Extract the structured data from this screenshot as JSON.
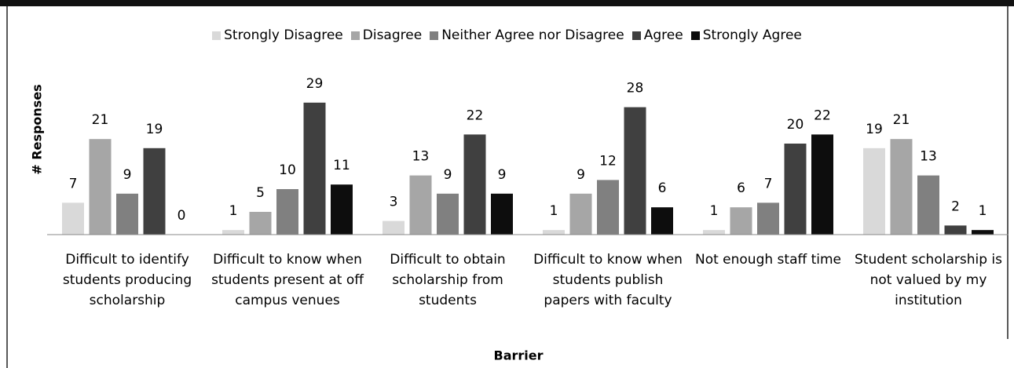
{
  "chart_data": {
    "type": "bar",
    "x_label": "Barrier",
    "y_label": "# Responses",
    "categories": [
      "Difficult to identify students producing scholarship",
      "Difficult to know when students present at off campus venues",
      "Difficult to obtain scholarship from students",
      "Difficult to know when students publish papers with faculty",
      "Not enough staff time",
      "Student scholarship is not valued by my institution"
    ],
    "series": [
      {
        "name": "Strongly Disagree",
        "color": "#d9d9d9",
        "values": [
          7,
          1,
          3,
          1,
          1,
          19
        ]
      },
      {
        "name": "Disagree",
        "color": "#a6a6a6",
        "values": [
          21,
          5,
          13,
          9,
          6,
          21
        ]
      },
      {
        "name": "Neither Agree nor Disagree",
        "color": "#808080",
        "values": [
          9,
          10,
          9,
          12,
          7,
          13
        ]
      },
      {
        "name": "Agree",
        "color": "#404040",
        "values": [
          19,
          29,
          22,
          28,
          20,
          2
        ]
      },
      {
        "name": "Strongly Agree",
        "color": "#0d0d0d",
        "values": [
          0,
          11,
          9,
          6,
          22,
          1
        ]
      }
    ],
    "ylim": [
      0,
      30
    ],
    "legend": "top"
  }
}
